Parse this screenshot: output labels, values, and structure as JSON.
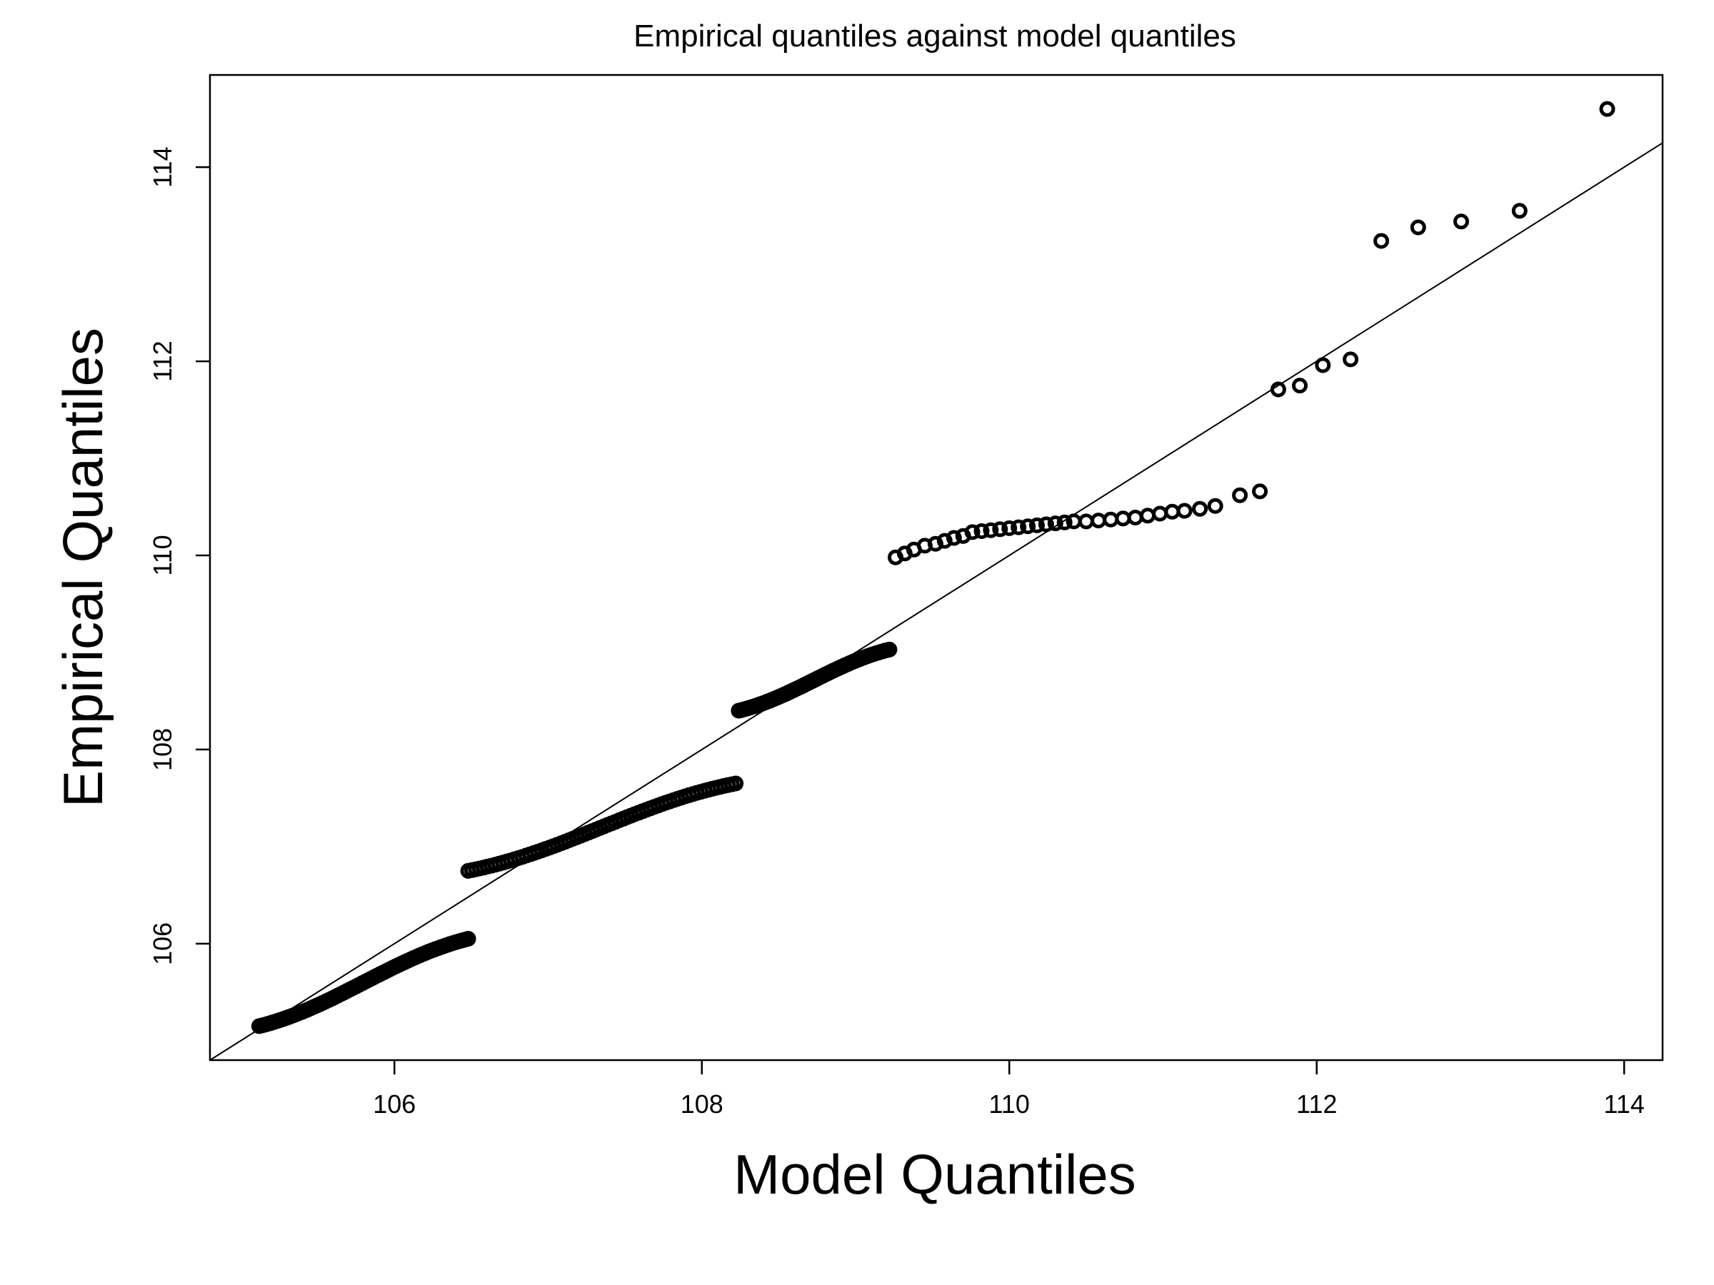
{
  "chart_data": {
    "type": "scatter",
    "title": "Empirical quantiles against model quantiles",
    "xlabel": "Model Quantiles",
    "ylabel": "Empirical Quantiles",
    "xlim": [
      104.8,
      114.25
    ],
    "ylim": [
      104.8,
      114.95
    ],
    "xticks": [
      106,
      108,
      110,
      112,
      114
    ],
    "yticks": [
      106,
      108,
      110,
      112,
      114
    ],
    "reference_line": {
      "intercept": 0,
      "slope": 1
    },
    "grid": false,
    "segments": [
      {
        "x": [
          105.12,
          106.48
        ],
        "y": [
          105.15,
          106.05
        ]
      },
      {
        "x": [
          106.48,
          108.22
        ],
        "y": [
          106.75,
          107.65
        ]
      },
      {
        "x": [
          108.24,
          109.22
        ],
        "y": [
          108.4,
          109.03
        ]
      }
    ],
    "series": [
      {
        "x": [
          109.26,
          109.32,
          109.38,
          109.45,
          109.52,
          109.58,
          109.64,
          109.7,
          109.76,
          109.82,
          109.88,
          109.94,
          110.0,
          110.06,
          110.12,
          110.18,
          110.24,
          110.3,
          110.36,
          110.42,
          110.5,
          110.58,
          110.66,
          110.74,
          110.82,
          110.9,
          110.98,
          111.06,
          111.14,
          111.24,
          111.34,
          111.5,
          111.63,
          111.75,
          111.89,
          112.04,
          112.22,
          112.42,
          112.66,
          112.94,
          113.32,
          113.89
        ],
        "y": [
          109.98,
          110.02,
          110.06,
          110.1,
          110.12,
          110.15,
          110.18,
          110.2,
          110.24,
          110.25,
          110.26,
          110.27,
          110.28,
          110.29,
          110.3,
          110.31,
          110.32,
          110.33,
          110.34,
          110.35,
          110.35,
          110.36,
          110.37,
          110.38,
          110.39,
          110.41,
          110.43,
          110.45,
          110.46,
          110.48,
          110.51,
          110.62,
          110.66,
          111.71,
          111.75,
          111.96,
          112.02,
          113.24,
          113.38,
          113.44,
          113.55,
          114.6
        ]
      }
    ]
  }
}
